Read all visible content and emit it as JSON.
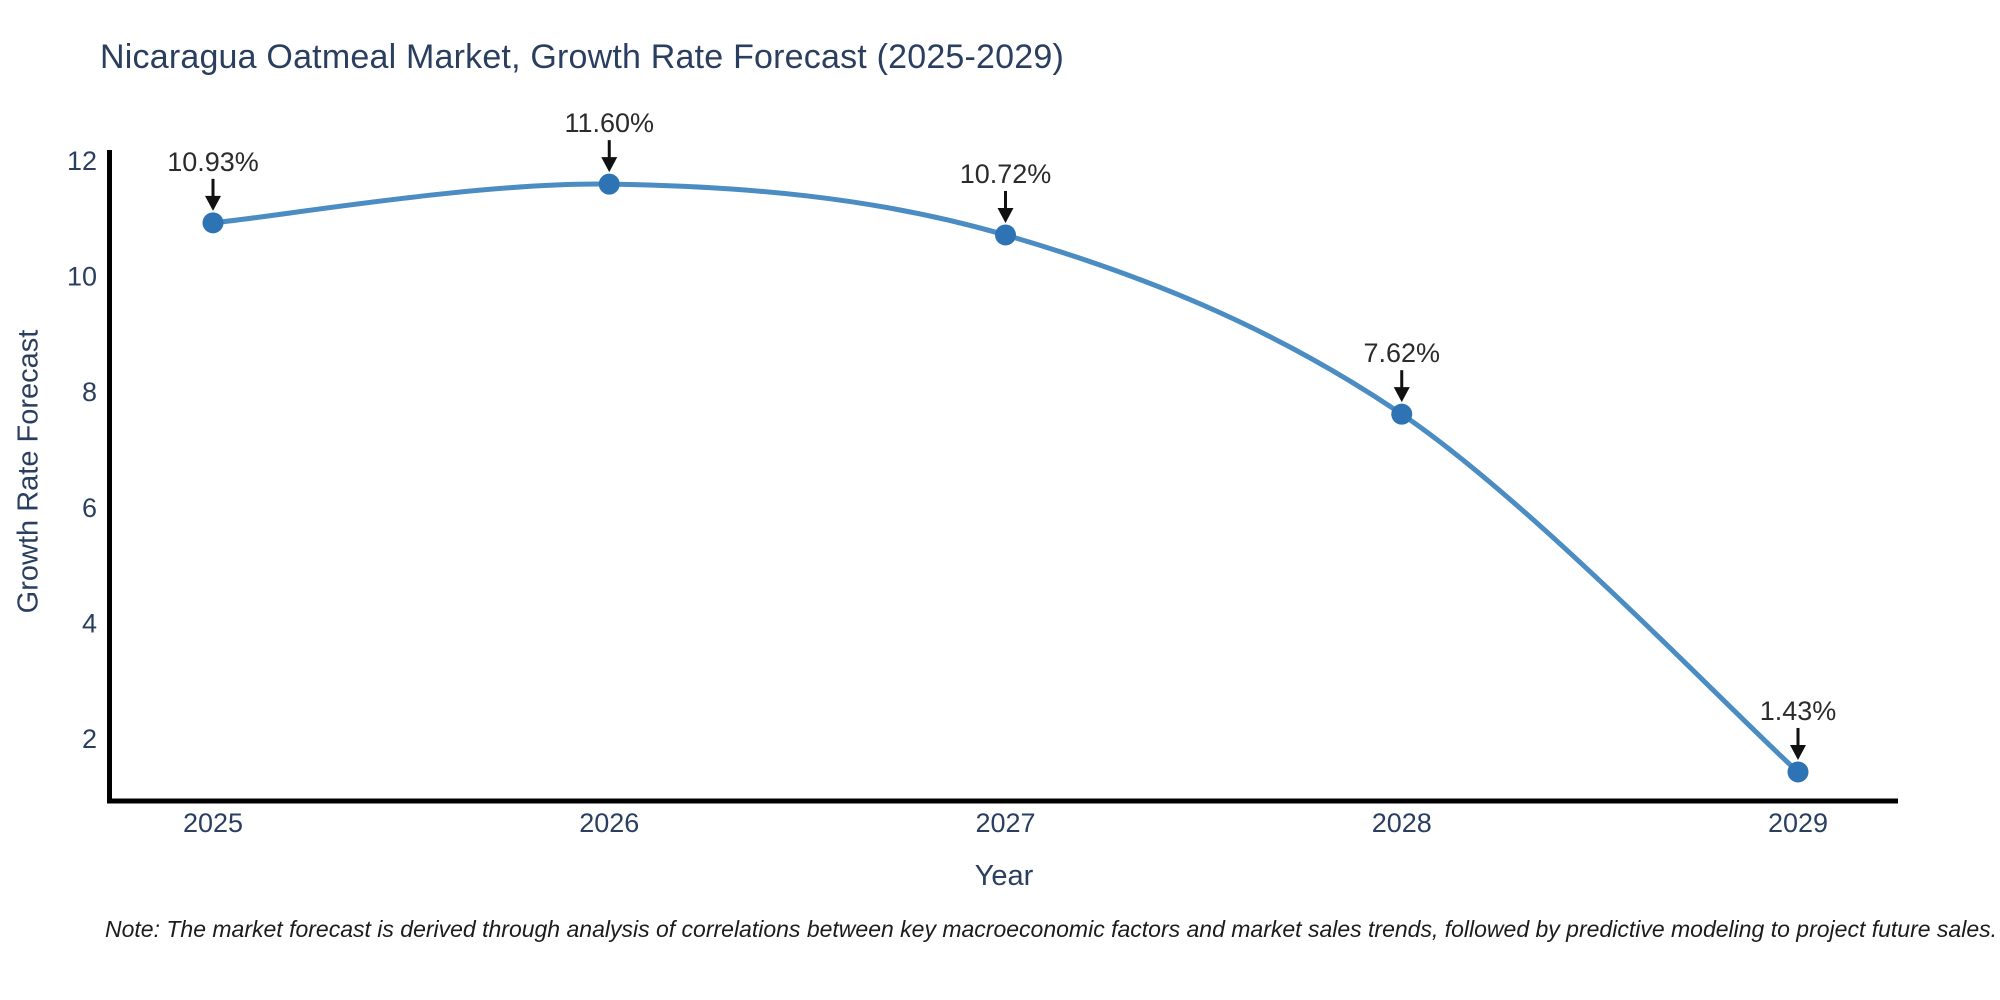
{
  "figure": {
    "note": "Note: The market forecast is derived through analysis of correlations between key macroeconomic factors and market sales trends, followed by predictive modeling to project future sales."
  },
  "chart_data": {
    "type": "line",
    "title": "Nicaragua Oatmeal Market, Growth Rate Forecast (2025-2029)",
    "xlabel": "Year",
    "ylabel": "Growth Rate Forecast",
    "x": [
      2025,
      2026,
      2027,
      2028,
      2029
    ],
    "x_tick_labels": [
      "2025",
      "2026",
      "2027",
      "2028",
      "2029"
    ],
    "values": [
      10.93,
      11.6,
      10.72,
      7.62,
      1.43
    ],
    "point_labels": [
      "10.93%",
      "11.60%",
      "10.72%",
      "7.62%",
      "1.43%"
    ],
    "y_ticks": [
      2,
      4,
      6,
      8,
      10,
      12
    ],
    "ylim": [
      0.93,
      12.2
    ],
    "grid": false,
    "legend_position": "none",
    "line_shape": "spline",
    "marker_style": "circle",
    "annotation_arrows": true,
    "colors": {
      "line": "#4b8dc2",
      "marker": "#2e74b5",
      "axis_spine": "#000000",
      "axis_text": "#2a3f5f",
      "annotation_text": "#2b2b2b",
      "annotation_arrow": "#111111",
      "background": "#ffffff"
    }
  }
}
